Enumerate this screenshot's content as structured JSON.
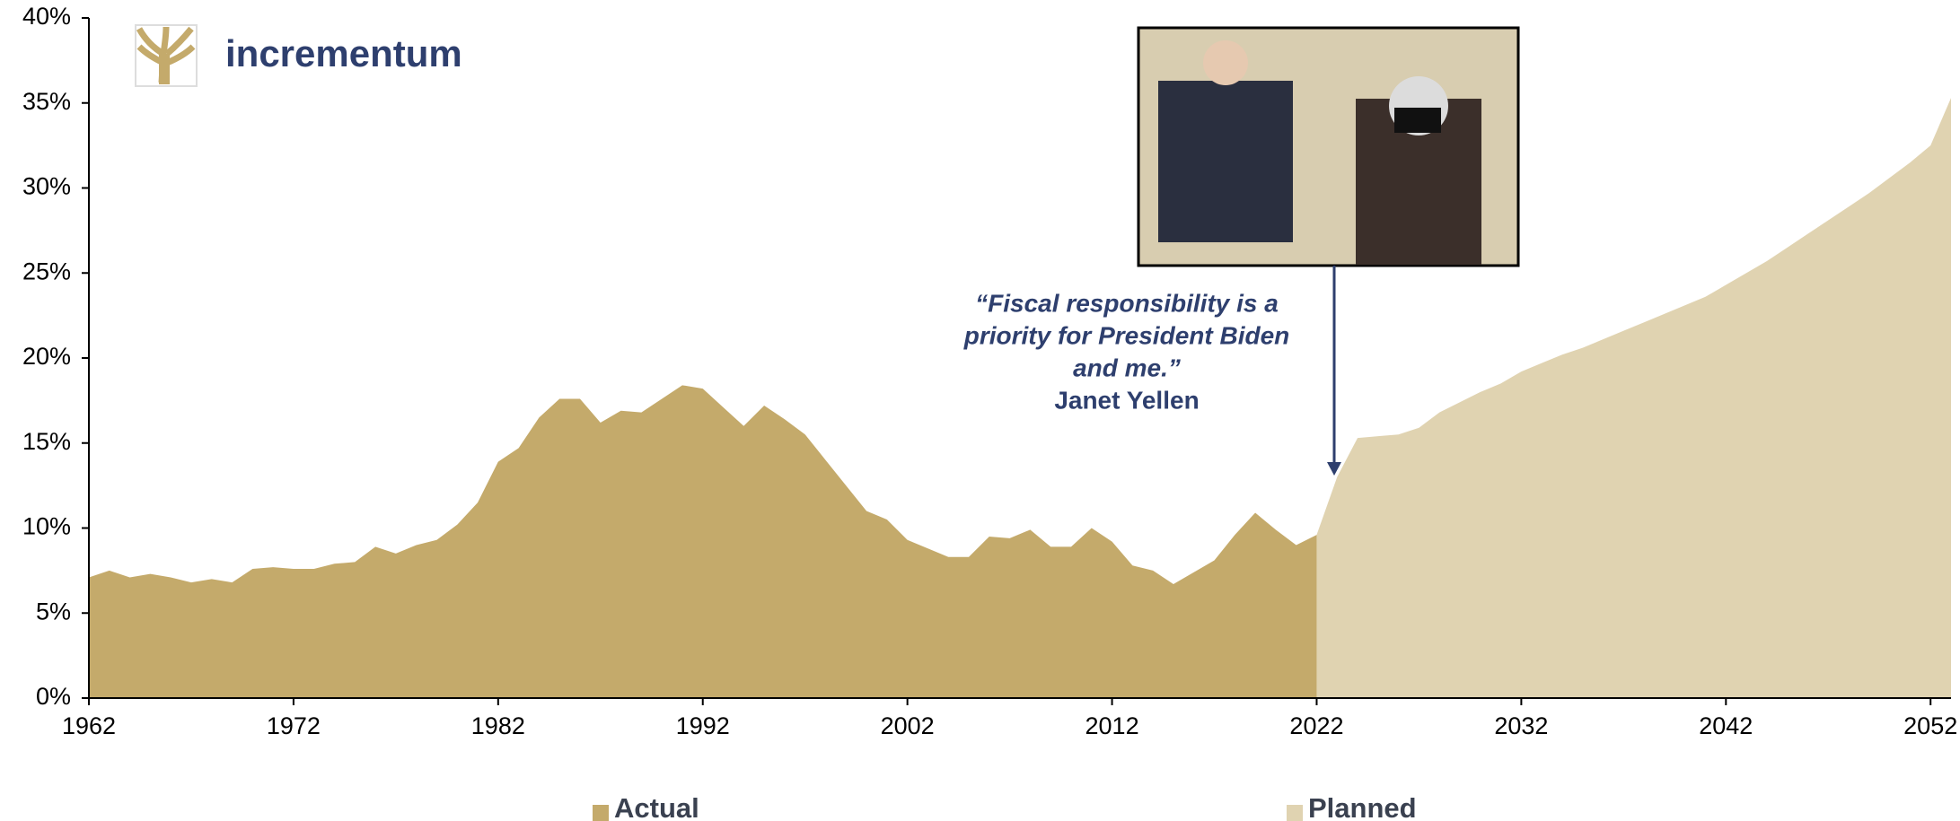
{
  "chart_data": {
    "type": "area",
    "logo": "incrementum",
    "annotation": {
      "quote": [
        "“Fiscal responsibility is a",
        "priority for President Biden",
        "and me.”"
      ],
      "author": "Janet Yellen"
    },
    "xlim": [
      1962,
      2053
    ],
    "xticks": [
      1962,
      1972,
      1982,
      1992,
      2002,
      2012,
      2022,
      2032,
      2042,
      2052
    ],
    "ylim": [
      0,
      40
    ],
    "yticks": [
      {
        "value": 0,
        "label": "0%"
      },
      {
        "value": 5,
        "label": "5%"
      },
      {
        "value": 10,
        "label": "10%"
      },
      {
        "value": 15,
        "label": "15%"
      },
      {
        "value": 20,
        "label": "20%"
      },
      {
        "value": 25,
        "label": "25%"
      },
      {
        "value": 30,
        "label": "30%"
      },
      {
        "value": 35,
        "label": "35%"
      },
      {
        "value": 40,
        "label": "40%"
      }
    ],
    "series": [
      {
        "name": "Actual",
        "color": "#c4aa6b",
        "x": [
          1962,
          1963,
          1964,
          1965,
          1966,
          1967,
          1968,
          1969,
          1970,
          1971,
          1972,
          1973,
          1974,
          1975,
          1976,
          1977,
          1978,
          1979,
          1980,
          1981,
          1982,
          1983,
          1984,
          1985,
          1986,
          1987,
          1988,
          1989,
          1990,
          1991,
          1992,
          1993,
          1994,
          1995,
          1996,
          1997,
          1998,
          1999,
          2000,
          2001,
          2002,
          2003,
          2004,
          2005,
          2006,
          2007,
          2008,
          2009,
          2010,
          2011,
          2012,
          2013,
          2014,
          2015,
          2016,
          2017,
          2018,
          2019,
          2020,
          2021,
          2022
        ],
        "values": [
          7.1,
          7.5,
          7.1,
          7.3,
          7.1,
          6.8,
          7.0,
          6.8,
          7.6,
          7.7,
          7.6,
          7.6,
          7.9,
          8.0,
          8.9,
          8.5,
          9.0,
          9.3,
          10.2,
          11.5,
          13.9,
          14.7,
          16.5,
          17.6,
          17.6,
          16.2,
          16.9,
          16.8,
          17.6,
          18.4,
          18.2,
          17.1,
          16.0,
          17.2,
          16.4,
          15.5,
          14.0,
          12.5,
          11.0,
          10.5,
          9.3,
          8.8,
          8.3,
          8.3,
          9.5,
          9.4,
          9.9,
          8.9,
          8.9,
          10.0,
          9.2,
          7.8,
          7.5,
          6.7,
          7.4,
          8.1,
          9.6,
          10.9,
          9.9,
          9.0,
          9.6
        ]
      },
      {
        "name": "Planned",
        "color": "#e0d3b1",
        "x": [
          2022,
          2023,
          2024,
          2025,
          2026,
          2027,
          2028,
          2029,
          2030,
          2031,
          2032,
          2033,
          2034,
          2035,
          2036,
          2037,
          2038,
          2039,
          2040,
          2041,
          2042,
          2043,
          2044,
          2045,
          2046,
          2047,
          2048,
          2049,
          2050,
          2051,
          2052,
          2053
        ],
        "values": [
          9.6,
          13.0,
          15.3,
          15.4,
          15.5,
          15.9,
          16.8,
          17.4,
          18.0,
          18.5,
          19.2,
          19.7,
          20.2,
          20.6,
          21.1,
          21.6,
          22.1,
          22.6,
          23.1,
          23.6,
          24.3,
          25.0,
          25.7,
          26.5,
          27.3,
          28.1,
          28.9,
          29.7,
          30.6,
          31.5,
          32.5,
          35.3
        ]
      }
    ]
  }
}
